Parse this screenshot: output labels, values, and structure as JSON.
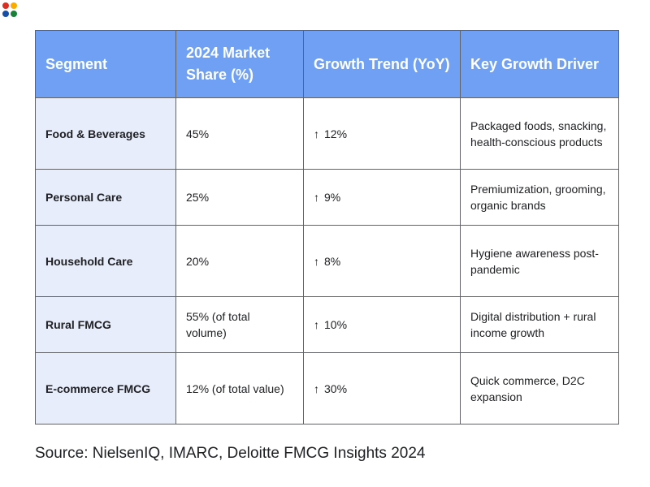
{
  "logo": {
    "name": "four-dot logo",
    "colors": [
      "#d93025",
      "#f9ab00",
      "#174ea6",
      "#188038"
    ]
  },
  "table": {
    "headers": [
      "Segment",
      "2024 Market Share (%)",
      "Growth Trend (YoY)",
      "Key Growth Driver"
    ],
    "rows": [
      {
        "segment": "Food & Beverages",
        "share": "45%",
        "trend_icon": "up-arrow-icon",
        "trend_arrow": "↑",
        "trend": "12%",
        "driver": "Packaged foods, snacking, health-conscious products"
      },
      {
        "segment": "Personal Care",
        "share": "25%",
        "trend_icon": "up-arrow-icon",
        "trend_arrow": "↑",
        "trend": "9%",
        "driver": "Premiumization, grooming, organic brands"
      },
      {
        "segment": "Household Care",
        "share": "20%",
        "trend_icon": "up-arrow-icon",
        "trend_arrow": "↑",
        "trend": "8%",
        "driver": "Hygiene awareness post-pandemic"
      },
      {
        "segment": "Rural FMCG",
        "share": "55% (of total volume)",
        "trend_icon": "up-arrow-icon",
        "trend_arrow": "↑",
        "trend": "10%",
        "driver": "Digital distribution + rural income growth"
      },
      {
        "segment": "E-commerce FMCG",
        "share": "12% (of total value)",
        "trend_icon": "up-arrow-icon",
        "trend_arrow": "↑",
        "trend": "30%",
        "driver": "Quick commerce, D2C expansion"
      }
    ]
  },
  "colors": {
    "header_bg": "#6fa0f4",
    "header_text": "#ffffff",
    "segment_bg": "#e7edfb",
    "border": "#5f6368"
  },
  "source": "Source: NielsenIQ, IMARC, Deloitte FMCG Insights 2024"
}
